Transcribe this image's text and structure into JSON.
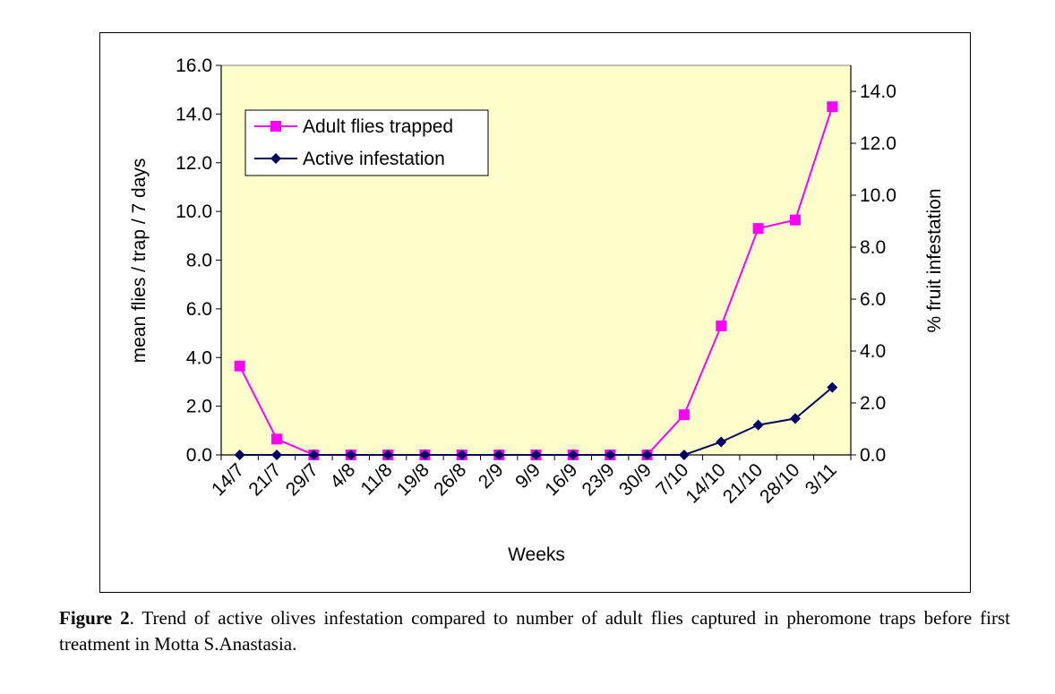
{
  "chart_data": {
    "type": "line",
    "xlabel": "Weeks",
    "ylabel": "mean flies / trap / 7 days",
    "y2label": "% fruit infestation",
    "categories": [
      "14/7",
      "21/7",
      "29/7",
      "4/8",
      "11/8",
      "19/8",
      "26/8",
      "2/9",
      "9/9",
      "16/9",
      "23/9",
      "30/9",
      "7/10",
      "14/10",
      "21/10",
      "28/10",
      "3/11"
    ],
    "ylim": [
      0,
      16
    ],
    "y2lim": [
      0,
      15
    ],
    "yticks": [
      "0.0",
      "2.0",
      "4.0",
      "6.0",
      "8.0",
      "10.0",
      "12.0",
      "14.0",
      "16.0"
    ],
    "y2ticks": [
      "0.0",
      "2.0",
      "4.0",
      "6.0",
      "8.0",
      "10.0",
      "12.0",
      "14.0"
    ],
    "plot_background": "#ffffcc",
    "grid": false,
    "legend_position": "top-left",
    "series": [
      {
        "name": "Adult flies trapped",
        "axis": "left",
        "color": "#ff00ff",
        "marker": "square",
        "values": [
          3.65,
          0.65,
          0,
          0,
          0,
          0,
          0,
          0,
          0,
          0,
          0,
          0,
          1.65,
          5.3,
          9.3,
          9.65,
          14.3
        ]
      },
      {
        "name": "Active infestation",
        "axis": "right",
        "color": "#000066",
        "marker": "diamond",
        "values": [
          0,
          0,
          0,
          0,
          0,
          0,
          0,
          0,
          0,
          0,
          0,
          0,
          0,
          0.5,
          1.15,
          1.4,
          2.6
        ]
      }
    ]
  },
  "caption": {
    "label": "Figure 2",
    "text": ". Trend of active olives infestation compared to number of adult flies captured in pheromone traps before first treatment in Motta S.Anastasia."
  }
}
